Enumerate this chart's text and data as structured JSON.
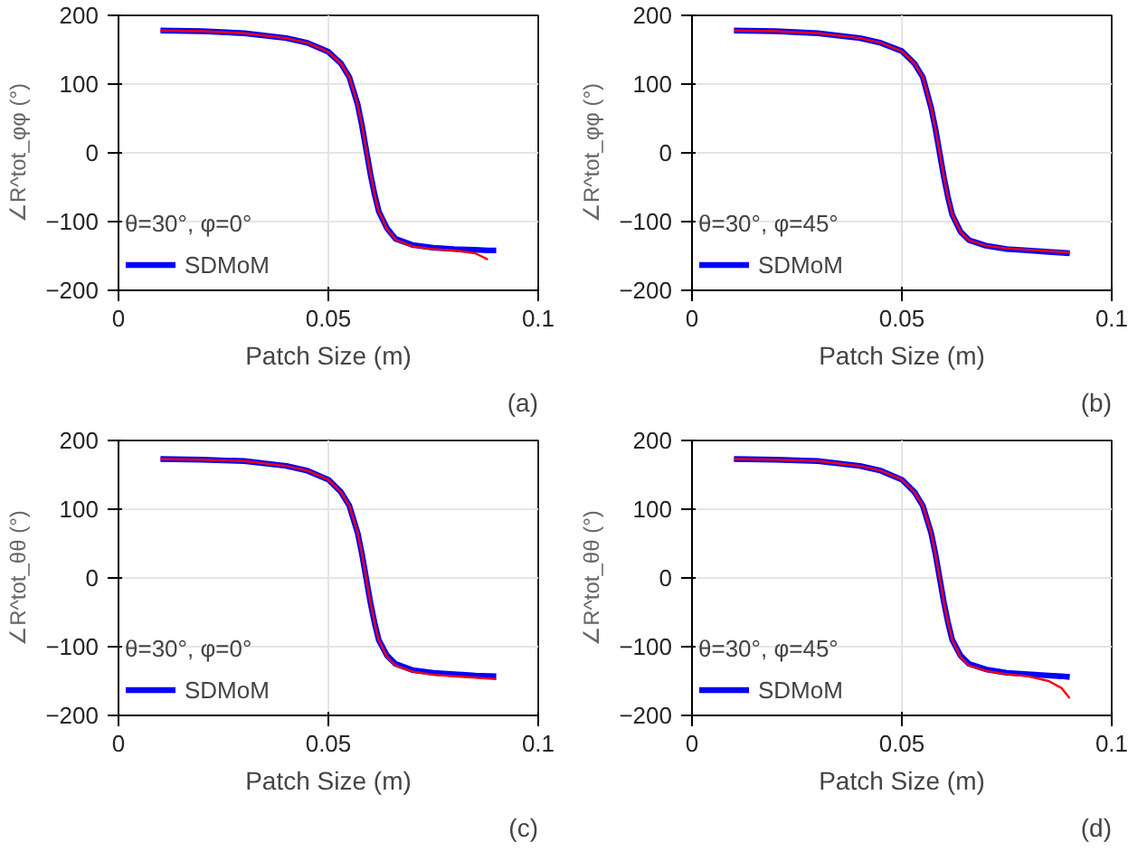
{
  "chart_data": [
    {
      "type": "line",
      "xlabel": "Patch Size (m)",
      "ylabel": "∠R^tot_φφ (°)",
      "legend_title": "θ=30°, φ=0°",
      "annotations": [
        "(a)"
      ],
      "xlim": [
        0,
        0.1
      ],
      "ylim": [
        -200,
        200
      ],
      "xticks": [
        0,
        0.05,
        0.1
      ],
      "yticks": [
        -200,
        -100,
        0,
        100,
        200
      ],
      "grid": true,
      "legend": "bottom left",
      "x": [
        0.01,
        0.02,
        0.03,
        0.04,
        0.045,
        0.05,
        0.053,
        0.055,
        0.057,
        0.058,
        0.059,
        0.06,
        0.061,
        0.062,
        0.064,
        0.066,
        0.07,
        0.075,
        0.08,
        0.085,
        0.088,
        0.09
      ],
      "series": [
        {
          "name": "SDMoM",
          "color": "#0000ff",
          "values": [
            178,
            177,
            174,
            167,
            160,
            147,
            130,
            110,
            70,
            40,
            5,
            -30,
            -60,
            -85,
            -110,
            -125,
            -134,
            -138,
            -140,
            -141,
            -142,
            -142
          ]
        },
        {
          "color": "#ff0000",
          "values": [
            178,
            177,
            174,
            167,
            160,
            147,
            130,
            110,
            70,
            40,
            5,
            -30,
            -60,
            -85,
            -111,
            -126,
            -136,
            -140,
            -142,
            -146,
            -155,
            null
          ]
        }
      ]
    },
    {
      "type": "line",
      "xlabel": "Patch Size (m)",
      "ylabel": "∠R^tot_φφ (°)",
      "legend_title": "θ=30°, φ=45°",
      "annotations": [
        "(b)"
      ],
      "xlim": [
        0,
        0.1
      ],
      "ylim": [
        -200,
        200
      ],
      "xticks": [
        0,
        0.05,
        0.1
      ],
      "yticks": [
        -200,
        -100,
        0,
        100,
        200
      ],
      "grid": true,
      "legend": "bottom left",
      "x": [
        0.01,
        0.02,
        0.03,
        0.04,
        0.045,
        0.05,
        0.053,
        0.055,
        0.057,
        0.058,
        0.059,
        0.06,
        0.061,
        0.062,
        0.064,
        0.066,
        0.07,
        0.075,
        0.08,
        0.085,
        0.09
      ],
      "series": [
        {
          "name": "SDMoM",
          "color": "#0000ff",
          "values": [
            178,
            177,
            174,
            167,
            160,
            148,
            130,
            110,
            65,
            35,
            0,
            -35,
            -65,
            -90,
            -115,
            -127,
            -135,
            -140,
            -142,
            -144,
            -146
          ]
        },
        {
          "color": "#ff0000",
          "values": [
            178,
            177,
            174,
            167,
            160,
            148,
            130,
            110,
            65,
            35,
            0,
            -35,
            -65,
            -90,
            -115,
            -127,
            -135,
            -139,
            -141,
            -143,
            -145
          ]
        }
      ]
    },
    {
      "type": "line",
      "xlabel": "Patch Size (m)",
      "ylabel": "∠R^tot_θθ (°)",
      "legend_title": "θ=30°, φ=0°",
      "annotations": [
        "(c)"
      ],
      "xlim": [
        0,
        0.1
      ],
      "ylim": [
        -200,
        200
      ],
      "xticks": [
        0,
        0.05,
        0.1
      ],
      "yticks": [
        -200,
        -100,
        0,
        100,
        200
      ],
      "grid": true,
      "legend": "bottom left",
      "x": [
        0.01,
        0.02,
        0.03,
        0.04,
        0.045,
        0.05,
        0.053,
        0.055,
        0.057,
        0.058,
        0.059,
        0.06,
        0.061,
        0.062,
        0.064,
        0.066,
        0.07,
        0.075,
        0.08,
        0.085,
        0.09
      ],
      "series": [
        {
          "name": "SDMoM",
          "color": "#0000ff",
          "values": [
            173,
            172,
            170,
            163,
            156,
            143,
            125,
            105,
            65,
            35,
            0,
            -35,
            -65,
            -90,
            -113,
            -125,
            -134,
            -138,
            -140,
            -142,
            -143
          ]
        },
        {
          "color": "#ff0000",
          "values": [
            173,
            172,
            170,
            163,
            156,
            143,
            125,
            105,
            65,
            35,
            0,
            -35,
            -65,
            -90,
            -115,
            -127,
            -136,
            -141,
            -143,
            -145,
            -147
          ]
        }
      ]
    },
    {
      "type": "line",
      "xlabel": "Patch Size (m)",
      "ylabel": "∠R^tot_θθ (°)",
      "legend_title": "θ=30°, φ=45°",
      "annotations": [
        "(d)"
      ],
      "xlim": [
        0,
        0.1
      ],
      "ylim": [
        -200,
        200
      ],
      "xticks": [
        0,
        0.05,
        0.1
      ],
      "yticks": [
        -200,
        -100,
        0,
        100,
        200
      ],
      "grid": true,
      "legend": "bottom left",
      "x": [
        0.01,
        0.02,
        0.03,
        0.04,
        0.045,
        0.05,
        0.053,
        0.055,
        0.057,
        0.058,
        0.059,
        0.06,
        0.061,
        0.062,
        0.064,
        0.066,
        0.07,
        0.075,
        0.08,
        0.085,
        0.088,
        0.09
      ],
      "series": [
        {
          "name": "SDMoM",
          "color": "#0000ff",
          "values": [
            173,
            172,
            170,
            163,
            156,
            143,
            125,
            105,
            65,
            35,
            0,
            -35,
            -65,
            -90,
            -113,
            -125,
            -133,
            -138,
            -140,
            -142,
            -143,
            -144
          ]
        },
        {
          "color": "#ff0000",
          "values": [
            173,
            172,
            170,
            163,
            156,
            143,
            125,
            105,
            65,
            35,
            0,
            -35,
            -65,
            -90,
            -115,
            -127,
            -135,
            -140,
            -143,
            -150,
            -160,
            -175
          ]
        }
      ]
    }
  ]
}
